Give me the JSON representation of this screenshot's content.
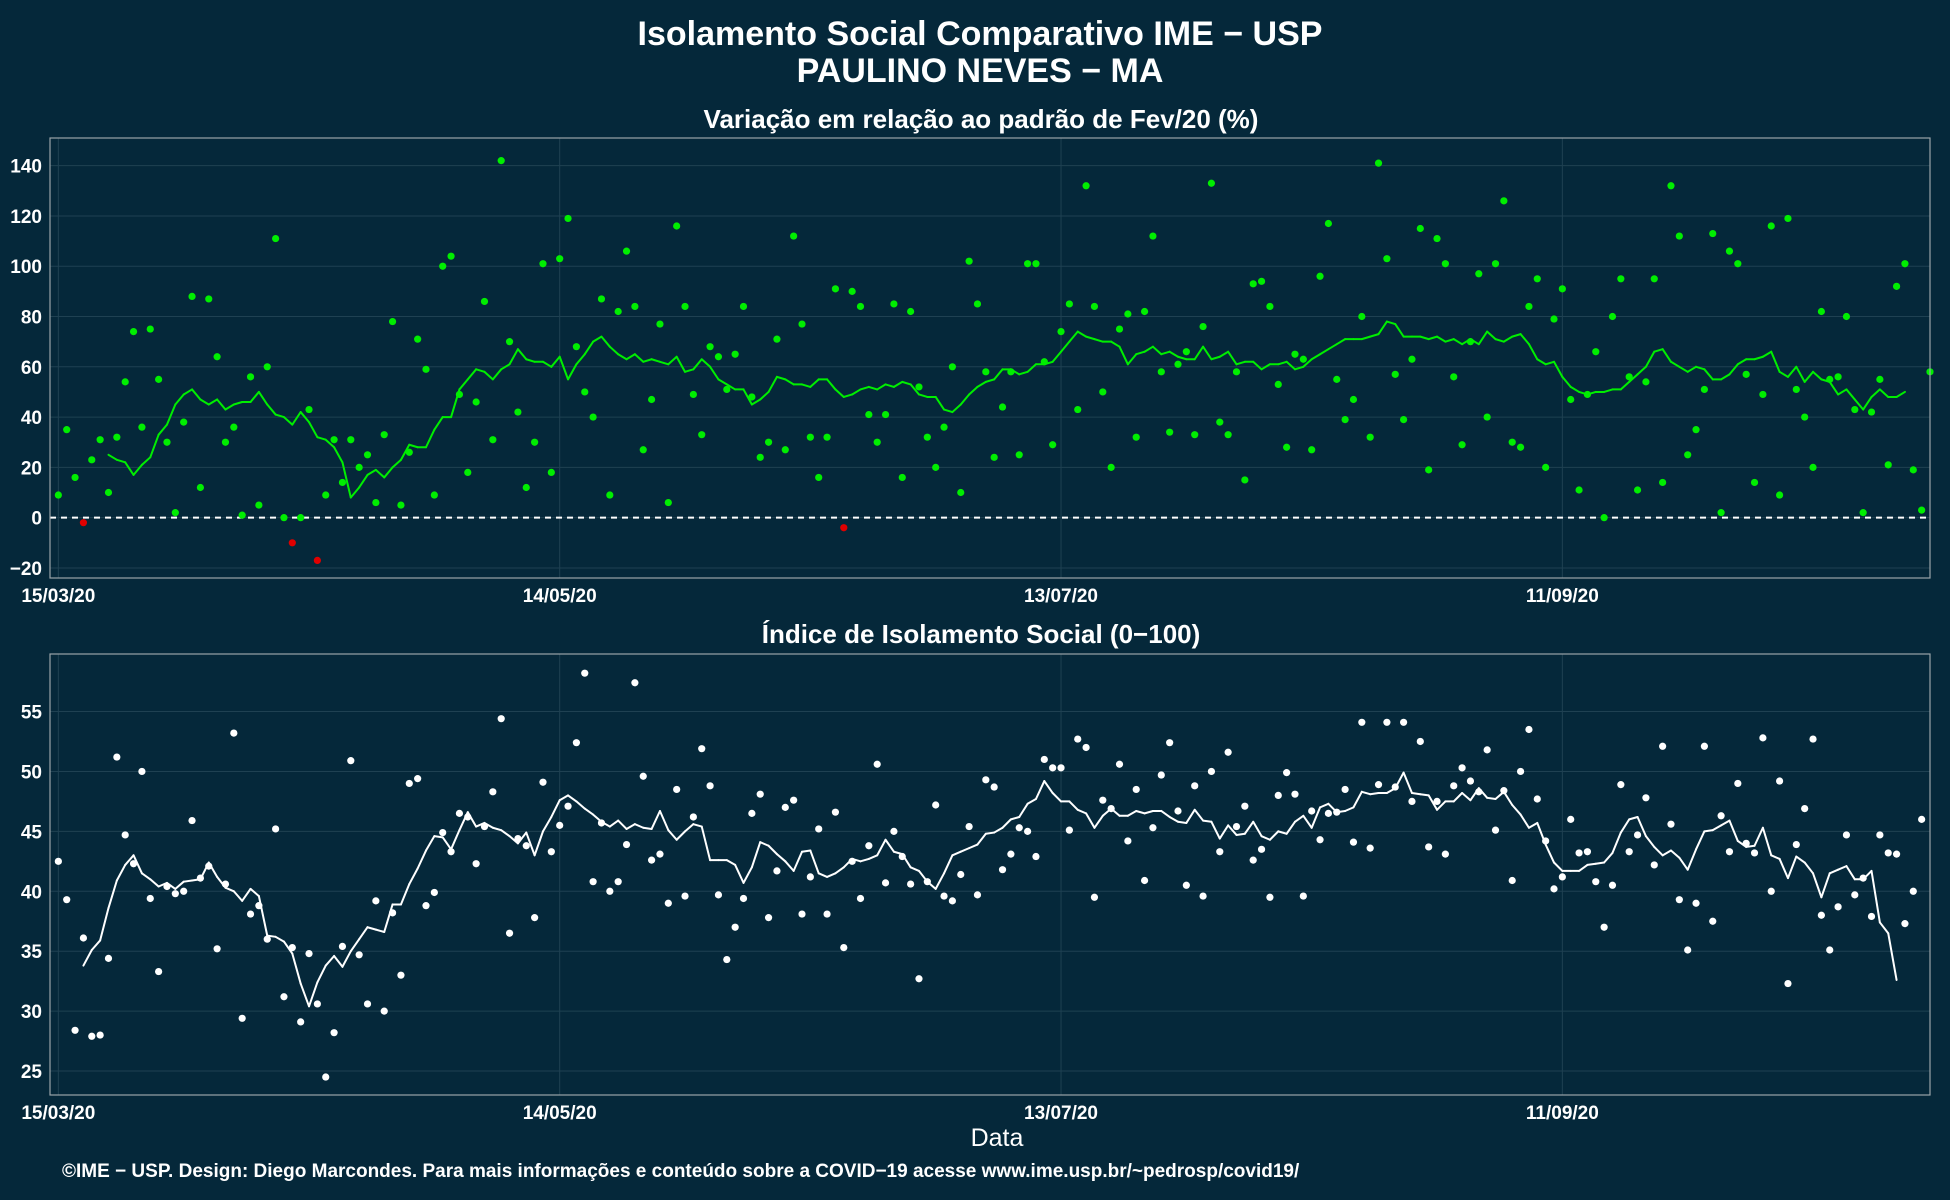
{
  "page": {
    "title_line1": "Isolamento Social Comparativo IME − USP",
    "title_line2": "PAULINO NEVES − MA",
    "footer": "©IME − USP. Design: Diego Marcondes. Para mais informações e conteúdo sobre a COVID−19 acesse www.ime.usp.br/~pedrosp/covid19/"
  },
  "colors": {
    "background": "#05283a",
    "panel_border": "#9aa3a8",
    "grid": "#1f4152",
    "positive_points": "#00ee00",
    "negative_points": "#e00000",
    "index_points": "#ffffff",
    "text": "#ffffff"
  },
  "chart_data": [
    {
      "type": "scatter",
      "title": "Variação em relação ao padrão de Fev/20 (%)",
      "xlabel": "",
      "ylabel": "",
      "x_ticks": [
        "15/03/20",
        "14/05/20",
        "13/07/20",
        "11/09/20"
      ],
      "x_tick_day": [
        0,
        60,
        120,
        180
      ],
      "x_range_days": [
        -1,
        224
      ],
      "y_ticks": [
        -20,
        0,
        20,
        40,
        60,
        80,
        100,
        120,
        140
      ],
      "ylim": [
        -24,
        151
      ],
      "reference_line": 0,
      "grid": true,
      "series": [
        {
          "kind": "points",
          "values": [
            9,
            35,
            16,
            -2,
            23,
            31,
            10,
            32,
            54,
            74,
            36,
            75,
            55,
            30,
            2,
            38,
            88,
            12,
            87,
            64,
            30,
            36,
            1,
            56,
            5,
            60,
            111,
            0,
            -10,
            0,
            43,
            -17,
            9,
            31,
            14,
            31,
            20,
            25,
            6,
            33,
            78,
            5,
            26,
            71,
            59,
            9,
            100,
            104,
            49,
            18,
            46,
            86,
            31,
            142,
            70,
            42,
            12,
            30,
            101,
            18,
            103,
            119,
            68,
            50,
            40,
            87,
            9,
            82,
            106,
            84,
            27,
            47,
            77,
            6,
            116,
            84,
            49,
            33,
            68,
            64,
            51,
            65,
            84,
            48,
            24,
            30,
            71,
            27,
            112,
            77,
            32,
            16,
            32,
            91,
            -4,
            90,
            84,
            41,
            30,
            41,
            85,
            16,
            82,
            52,
            32,
            20,
            36,
            60,
            10,
            102,
            85,
            58,
            24,
            44,
            58,
            25,
            101,
            101,
            62,
            29,
            74,
            85,
            43,
            132,
            84,
            50,
            20,
            75,
            81,
            32,
            82,
            112,
            58,
            34,
            61,
            66,
            33,
            76,
            133,
            38,
            33,
            58,
            15,
            93,
            94,
            84,
            53,
            28,
            65,
            63,
            27,
            96,
            117,
            55,
            39,
            47,
            80,
            32,
            141,
            103,
            57,
            39,
            63,
            115,
            19,
            111,
            101,
            56,
            29,
            70,
            97,
            40,
            101,
            126,
            30,
            28,
            84,
            95,
            20,
            79,
            91,
            47,
            11,
            49,
            66,
            0,
            80,
            95,
            56,
            11,
            54,
            95,
            14,
            132,
            112,
            25,
            35,
            51,
            113,
            2,
            106,
            101,
            57,
            14,
            49,
            116,
            9,
            119,
            51,
            40,
            20,
            82,
            55,
            56,
            80,
            43,
            2,
            42,
            55,
            21,
            92,
            101,
            19,
            3,
            58
          ]
        },
        {
          "kind": "moving_average",
          "values": [
            null,
            null,
            null,
            null,
            null,
            null,
            25,
            23,
            22,
            17,
            21,
            24,
            33,
            37,
            45,
            49,
            51,
            47,
            45,
            47,
            43,
            45,
            46,
            46,
            50,
            45,
            41,
            40,
            37,
            42,
            38,
            32,
            31,
            28,
            22,
            8,
            12,
            17,
            19,
            16,
            20,
            23,
            29,
            28,
            28,
            35,
            40,
            40,
            51,
            55,
            59,
            58,
            55,
            59,
            61,
            67,
            63,
            62,
            62,
            60,
            64,
            55,
            61,
            65,
            70,
            72,
            68,
            65,
            63,
            65,
            62,
            63,
            62,
            61,
            64,
            58,
            59,
            63,
            60,
            55,
            53,
            51,
            51,
            45,
            47,
            50,
            56,
            55,
            53,
            53,
            52,
            55,
            55,
            51,
            48,
            49,
            51,
            52,
            51,
            53,
            52,
            54,
            53,
            49,
            48,
            48,
            43,
            42,
            45,
            49,
            52,
            54,
            55,
            59,
            59,
            57,
            58,
            61,
            61,
            62,
            66,
            70,
            74,
            72,
            71,
            70,
            70,
            68,
            61,
            65,
            66,
            68,
            65,
            66,
            64,
            63,
            63,
            68,
            63,
            64,
            66,
            61,
            62,
            62,
            59,
            61,
            61,
            62,
            59,
            60,
            63,
            65,
            67,
            69,
            71,
            71,
            71,
            72,
            73,
            78,
            77,
            72,
            72,
            72,
            71,
            72,
            70,
            71,
            69,
            71,
            69,
            74,
            71,
            70,
            72,
            73,
            69,
            63,
            61,
            62,
            56,
            52,
            50,
            49,
            50,
            50,
            51,
            51,
            54,
            57,
            60,
            66,
            67,
            62,
            60,
            58,
            60,
            59,
            55,
            55,
            57,
            61,
            63,
            63,
            64,
            66,
            58,
            56,
            60,
            54,
            58,
            55,
            54,
            49,
            51,
            47,
            43,
            48,
            51,
            48,
            48,
            50
          ]
        }
      ]
    },
    {
      "type": "scatter",
      "title": "Índice de Isolamento Social (0−100)",
      "xlabel": "Data",
      "ylabel": "",
      "x_ticks": [
        "15/03/20",
        "14/05/20",
        "13/07/20",
        "11/09/20"
      ],
      "x_tick_day": [
        0,
        60,
        120,
        180
      ],
      "x_range_days": [
        -1,
        224
      ],
      "y_ticks": [
        25,
        30,
        35,
        40,
        45,
        50,
        55
      ],
      "ylim": [
        23,
        59.8
      ],
      "grid": true,
      "series": [
        {
          "kind": "points",
          "values": [
            42.5,
            39.3,
            28.4,
            36.1,
            27.9,
            28.0,
            34.4,
            51.2,
            44.7,
            42.3,
            50.0,
            39.4,
            33.3,
            40.4,
            39.8,
            40.0,
            45.9,
            41.1,
            42.1,
            35.2,
            40.6,
            53.2,
            29.4,
            38.1,
            38.8,
            36.0,
            45.2,
            31.2,
            35.3,
            29.1,
            34.8,
            30.6,
            24.5,
            28.2,
            35.4,
            50.9,
            34.7,
            30.6,
            39.2,
            30.0,
            38.2,
            33.0,
            49.0,
            49.4,
            38.8,
            39.9,
            44.9,
            43.3,
            46.5,
            46.2,
            42.3,
            45.4,
            48.3,
            54.4,
            36.5,
            44.4,
            43.8,
            37.8,
            49.1,
            43.3,
            45.5,
            47.1,
            52.4,
            58.2,
            40.8,
            45.7,
            40.0,
            40.8,
            43.9,
            57.4,
            49.6,
            42.6,
            43.1,
            39.0,
            48.5,
            39.6,
            46.2,
            51.9,
            48.8,
            39.7,
            34.3,
            37.0,
            39.4,
            46.5,
            48.1,
            37.8,
            41.7,
            47.0,
            47.6,
            38.1,
            41.2,
            45.2,
            38.1,
            46.6,
            35.3,
            42.5,
            39.4,
            43.8,
            50.6,
            40.7,
            45.0,
            42.9,
            40.6,
            32.7,
            40.8,
            47.2,
            39.6,
            39.2,
            41.4,
            45.4,
            39.7,
            49.3,
            48.7,
            41.8,
            43.1,
            45.3,
            45.0,
            42.9,
            51.0,
            50.3,
            50.3,
            45.1,
            52.7,
            52.0,
            39.5,
            47.6,
            46.9,
            50.6,
            44.2,
            48.5,
            40.9,
            45.3,
            49.7,
            52.4,
            46.7,
            40.5,
            48.8,
            39.6,
            50.0,
            43.3,
            51.6,
            45.4,
            47.1,
            42.6,
            43.5,
            39.5,
            48.0,
            49.9,
            48.1,
            39.6,
            46.7,
            44.3,
            46.5,
            46.6,
            48.5,
            44.1,
            54.1,
            43.6,
            48.9,
            54.1,
            48.7,
            54.1,
            47.5,
            52.5,
            43.7,
            47.5,
            43.1,
            48.8,
            50.3,
            49.2,
            48.3,
            51.8,
            45.1,
            48.4,
            40.9,
            50.0,
            53.5,
            47.7,
            44.2,
            40.2,
            41.2,
            46.0,
            43.2,
            43.3,
            40.8,
            37.0,
            40.5,
            48.9,
            43.3,
            44.7,
            47.8,
            42.2,
            52.1,
            45.6,
            39.3,
            35.1,
            39.0,
            52.1,
            37.5,
            46.3,
            43.3,
            49.0,
            44.0,
            43.2,
            52.8,
            40.0,
            49.2,
            32.3,
            43.9,
            46.9,
            52.7,
            38.0,
            35.1,
            38.7,
            44.7,
            39.7,
            41.1,
            37.9,
            44.7,
            43.2,
            43.1,
            37.3,
            40.0,
            46.0
          ]
        },
        {
          "kind": "moving_average",
          "values": [
            null,
            null,
            null,
            33.8,
            35.1,
            35.9,
            38.6,
            40.9,
            42.2,
            43.0,
            41.5,
            41.0,
            40.4,
            40.7,
            40.2,
            40.8,
            40.9,
            41.0,
            42.4,
            41.2,
            40.3,
            40.0,
            39.2,
            40.2,
            39.6,
            36.3,
            36.2,
            35.8,
            34.8,
            32.3,
            30.4,
            32.4,
            33.8,
            34.6,
            33.7,
            35.0,
            36.0,
            37.0,
            36.8,
            36.6,
            38.9,
            38.9,
            40.6,
            41.9,
            43.4,
            44.6,
            44.5,
            43.5,
            45.1,
            46.6,
            45.4,
            45.7,
            45.3,
            45.1,
            44.6,
            44.0,
            44.9,
            43.0,
            45.0,
            46.2,
            47.6,
            48.0,
            47.5,
            46.9,
            46.4,
            45.8,
            45.4,
            45.9,
            45.2,
            45.6,
            45.3,
            45.2,
            46.7,
            45.1,
            44.3,
            45.0,
            45.6,
            45.4,
            42.6,
            42.6,
            42.6,
            42.2,
            40.7,
            42.0,
            44.1,
            43.8,
            43.1,
            42.5,
            41.7,
            43.3,
            43.4,
            41.5,
            41.2,
            41.5,
            42.0,
            42.7,
            42.5,
            42.7,
            43.0,
            44.3,
            43.3,
            43.1,
            42.0,
            41.7,
            40.8,
            40.2,
            41.5,
            43.0,
            43.3,
            43.6,
            43.9,
            44.8,
            44.9,
            45.3,
            46.0,
            46.2,
            47.3,
            47.7,
            49.2,
            48.2,
            47.5,
            47.5,
            46.8,
            46.5,
            45.3,
            46.3,
            46.9,
            46.3,
            46.3,
            46.7,
            46.5,
            46.7,
            46.7,
            46.2,
            45.8,
            45.7,
            46.8,
            45.9,
            45.8,
            44.4,
            45.5,
            44.7,
            44.8,
            45.8,
            44.6,
            44.3,
            45.0,
            44.8,
            45.8,
            46.3,
            45.3,
            47.0,
            47.3,
            46.6,
            46.7,
            47.0,
            48.3,
            48.1,
            48.2,
            48.2,
            48.6,
            49.9,
            48.2,
            48.1,
            48.0,
            46.8,
            47.5,
            47.5,
            48.2,
            47.6,
            48.6,
            47.8,
            47.7,
            48.3,
            47.2,
            46.4,
            45.3,
            45.7,
            43.9,
            42.4,
            41.7,
            41.7,
            41.7,
            42.2,
            42.3,
            42.4,
            43.2,
            44.9,
            46.0,
            46.2,
            44.6,
            43.7,
            43.0,
            43.4,
            42.8,
            41.8,
            43.5,
            45.0,
            45.1,
            45.5,
            45.9,
            44.2,
            43.7,
            43.8,
            45.3,
            43.0,
            42.7,
            41.1,
            42.9,
            42.4,
            41.5,
            39.5,
            41.5,
            41.8,
            42.1,
            41.0,
            41.0,
            41.7,
            37.4,
            36.5,
            32.6
          ]
        }
      ]
    }
  ]
}
